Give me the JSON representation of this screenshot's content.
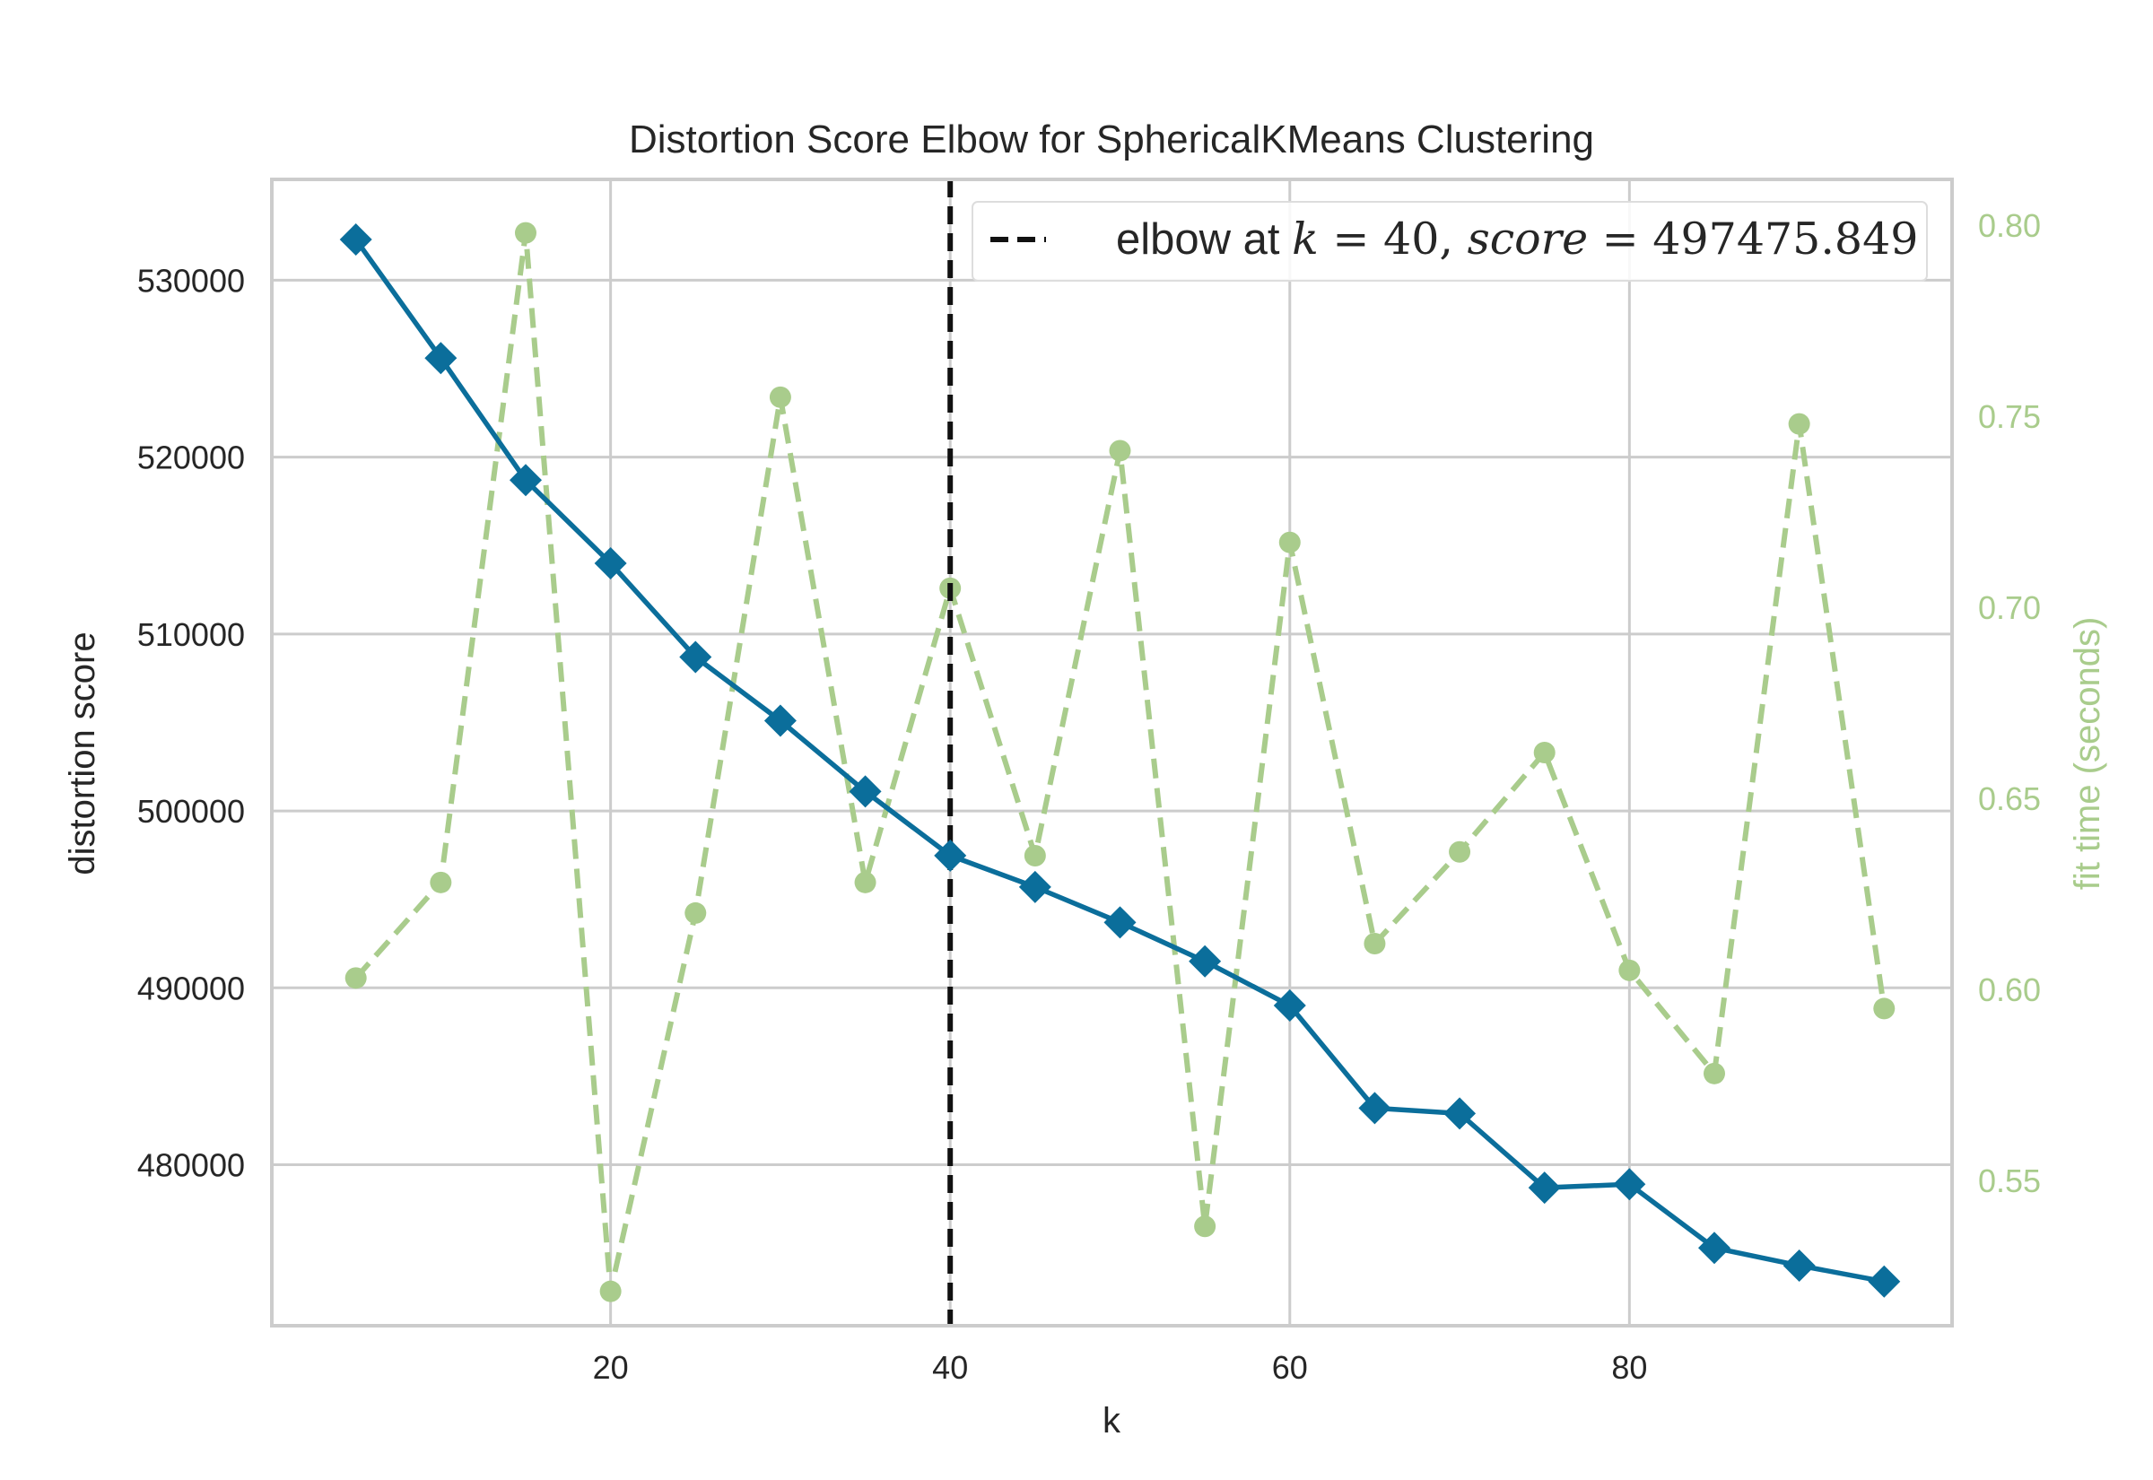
{
  "chart_data": {
    "type": "line",
    "title": "Distortion Score Elbow for SphericalKMeans Clustering",
    "xlabel": "k",
    "ylabel": "distortion score",
    "y2label": "fit time (seconds)",
    "x": [
      5,
      10,
      15,
      20,
      25,
      30,
      35,
      40,
      45,
      50,
      55,
      60,
      65,
      70,
      75,
      80,
      85,
      90,
      95
    ],
    "xlim": [
      0.05,
      99.0
    ],
    "ylim": [
      470900,
      535700
    ],
    "y2lim": [
      0.512,
      0.812
    ],
    "xticks": [
      20,
      40,
      60,
      80
    ],
    "yticks": [
      480000,
      490000,
      500000,
      510000,
      520000,
      530000
    ],
    "y2ticks": [
      0.55,
      0.6,
      0.65,
      0.7,
      0.75,
      0.8
    ],
    "xtick_labels": [
      "20",
      "40",
      "60",
      "80"
    ],
    "ytick_labels": [
      "480000",
      "490000",
      "500000",
      "510000",
      "520000",
      "530000"
    ],
    "y2tick_labels": [
      "0.55",
      "0.60",
      "0.65",
      "0.70",
      "0.75",
      "0.80"
    ],
    "series": [
      {
        "axis": "left",
        "color": "#0b6e9b",
        "marker": "diamond",
        "linestyle": "solid",
        "values": [
          532300,
          525600,
          518700,
          514000,
          508700,
          505100,
          501100,
          497475.849,
          495700,
          493700,
          491500,
          489000,
          483200,
          482900,
          478700,
          478900,
          475300,
          474300,
          473400
        ]
      },
      {
        "axis": "right",
        "color": "#a9cc8c",
        "marker": "circle",
        "linestyle": "dashed",
        "values": [
          0.603,
          0.628,
          0.798,
          0.521,
          0.62,
          0.755,
          0.628,
          0.705,
          0.635,
          0.741,
          0.538,
          0.717,
          0.612,
          0.636,
          0.662,
          0.605,
          0.578,
          0.748,
          0.595
        ]
      }
    ],
    "elbow": {
      "k": 40,
      "score": 497475.849,
      "color": "#111111",
      "legend_prefix": "elbow at ",
      "legend_k_var": "k",
      "legend_score_var": "score",
      "legend_equals": " = ",
      "legend_k_value": "40",
      "legend_separator": ", ",
      "legend_score_value": "497475.849"
    },
    "legend_placement": "top-right",
    "grid": true
  }
}
